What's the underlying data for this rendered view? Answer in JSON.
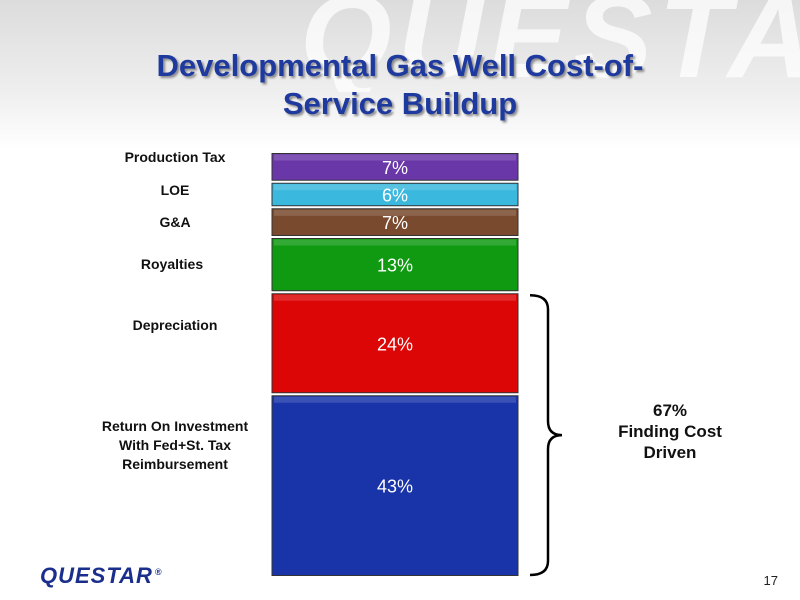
{
  "slide": {
    "watermark": "QUESTAR",
    "title_line1": "Developmental Gas Well Cost-of-",
    "title_line2": "Service Buildup",
    "logo": "QUESTAR",
    "logo_mark": "®",
    "page_number": "17"
  },
  "chart_data": {
    "type": "bar",
    "stacked": true,
    "categories": [
      "Return On Investment\nWith Fed+St. Tax\nReimbursement",
      "Depreciation",
      "Royalties",
      "G&A",
      "LOE",
      "Production Tax"
    ],
    "series": [
      {
        "category": "Return On Investment With Fed+St. Tax Reimbursement",
        "value": 43,
        "label": "43%",
        "color": "#1834a8"
      },
      {
        "category": "Depreciation",
        "value": 24,
        "label": "24%",
        "color": "#dd0606"
      },
      {
        "category": "Royalties",
        "value": 13,
        "label": "13%",
        "color": "#0f9a12"
      },
      {
        "category": "G&A",
        "value": 7,
        "label": "7%",
        "color": "#7a4a2e"
      },
      {
        "category": "LOE",
        "value": 6,
        "label": "6%",
        "color": "#3bb8de"
      },
      {
        "category": "Production Tax",
        "value": 7,
        "label": "7%",
        "color": "#6a37a8"
      }
    ],
    "annotation": {
      "brace_covers": [
        "Return On Investment With Fed+St. Tax Reimbursement",
        "Depreciation"
      ],
      "line1": "67%",
      "line2": "Finding Cost",
      "line3": "Driven"
    },
    "legend": "none",
    "grid": false
  }
}
